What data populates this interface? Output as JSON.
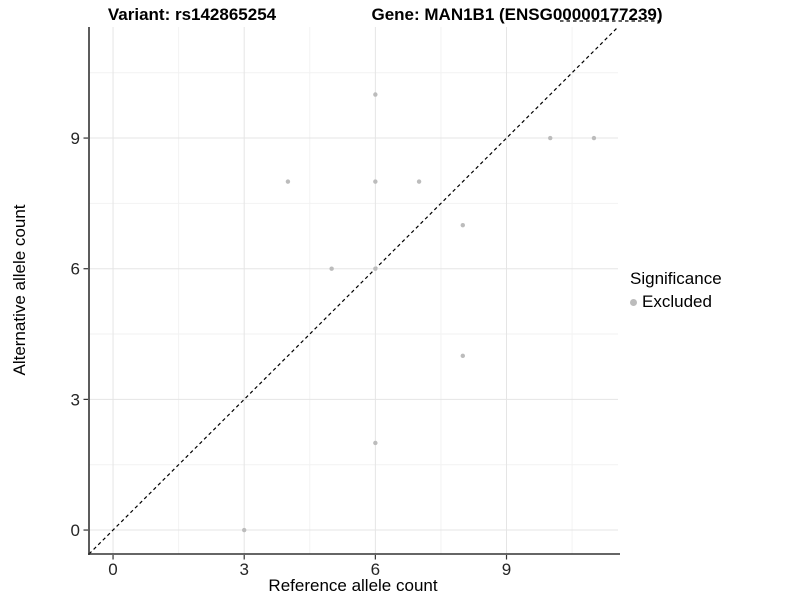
{
  "titles": {
    "left": "Variant: rs142865254",
    "right": "Gene: MAN1B1 (ENSG00000177239)"
  },
  "axes": {
    "xlabel": "Reference allele count",
    "ylabel": "Alternative allele count"
  },
  "legend": {
    "title": "Significance",
    "entries": [
      {
        "label": "Excluded",
        "color": "#bcbcbc"
      }
    ]
  },
  "chart_data": {
    "type": "scatter",
    "title": "Variant: rs142865254 — Gene: MAN1B1 (ENSG00000177239)",
    "xlabel": "Reference allele count",
    "ylabel": "Alternative allele count",
    "xlim": [
      -0.55,
      11.55
    ],
    "ylim": [
      -0.55,
      11.55
    ],
    "x_ticks": [
      0,
      3,
      6,
      9
    ],
    "y_ticks": [
      0,
      3,
      6,
      9
    ],
    "x_minor_ticks": [
      1.5,
      4.5,
      7.5,
      10.5
    ],
    "y_minor_ticks": [
      1.5,
      4.5,
      7.5,
      10.5
    ],
    "grid": true,
    "legend_position": "right",
    "identity_line": {
      "slope": 1,
      "intercept": 0,
      "style": "dashed",
      "color": "#000000"
    },
    "series": [
      {
        "name": "Excluded",
        "color": "#bcbcbc",
        "points": [
          [
            3,
            0
          ],
          [
            6,
            2
          ],
          [
            8,
            4
          ],
          [
            5,
            6
          ],
          [
            6,
            6
          ],
          [
            8,
            7
          ],
          [
            4,
            8
          ],
          [
            6,
            8
          ],
          [
            7,
            8
          ],
          [
            6,
            10
          ],
          [
            10,
            9
          ],
          [
            11,
            9
          ]
        ]
      }
    ],
    "style_colors": {
      "major_grid": "#e5e5e5",
      "minor_grid": "#f2f2f2",
      "axis_line": "#333333",
      "tick_label": "#262626",
      "point": "#bcbcbc"
    }
  }
}
